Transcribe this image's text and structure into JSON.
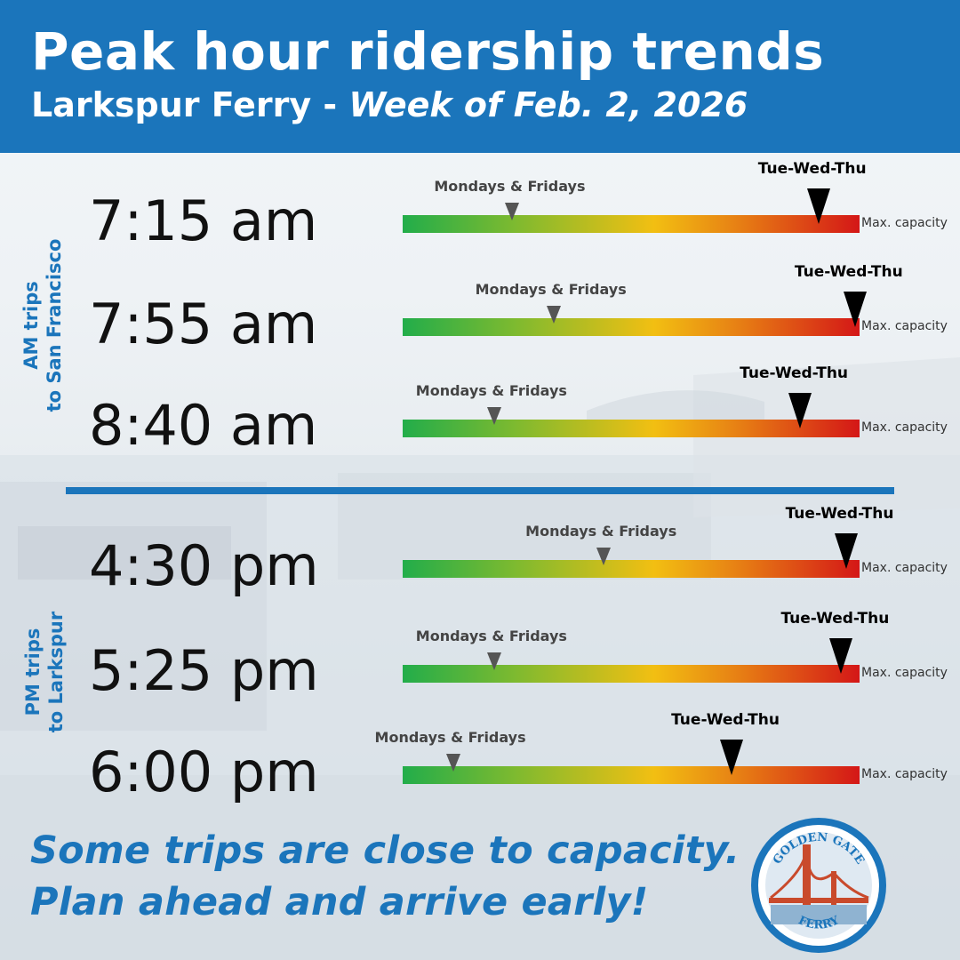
{
  "header": {
    "title": "Peak hour ridership trends",
    "subtitle_plain": "Larkspur Ferry - ",
    "subtitle_italic": "Week of Feb. 2, 2026"
  },
  "sections": {
    "am": {
      "line1": "AM trips",
      "line2": "to San Francisco"
    },
    "pm": {
      "line1": "PM trips",
      "line2": "to Larkspur"
    }
  },
  "chart_data": {
    "type": "bar",
    "title": "Peak hour ridership trends",
    "scale": {
      "min": 0,
      "max": 1,
      "max_label": "Max. capacity"
    },
    "marker_labels": {
      "mf": "Mondays & Fridays",
      "tw": "Tue-Wed-Thu"
    },
    "rows": [
      {
        "time": "7:15 am",
        "mf": 0.24,
        "tw": 0.91
      },
      {
        "time": "7:55 am",
        "mf": 0.33,
        "tw": 0.99
      },
      {
        "time": "8:40 am",
        "mf": 0.2,
        "tw": 0.87
      },
      {
        "time": "4:30 pm",
        "mf": 0.44,
        "tw": 0.97
      },
      {
        "time": "5:25 pm",
        "mf": 0.2,
        "tw": 0.96
      },
      {
        "time": "6:00 pm",
        "mf": 0.11,
        "tw": 0.72
      }
    ]
  },
  "footer": {
    "line1": "Some trips are close to capacity.",
    "line2": "Plan ahead and arrive early!"
  },
  "logo": {
    "top_text": "GOLDEN GATE",
    "bottom_text": "FERRY"
  },
  "colors": {
    "brand_blue": "#1b75bb",
    "bar_start": "#22ad4a",
    "bar_mid": "#f2bf12",
    "bar_end": "#d41717"
  }
}
